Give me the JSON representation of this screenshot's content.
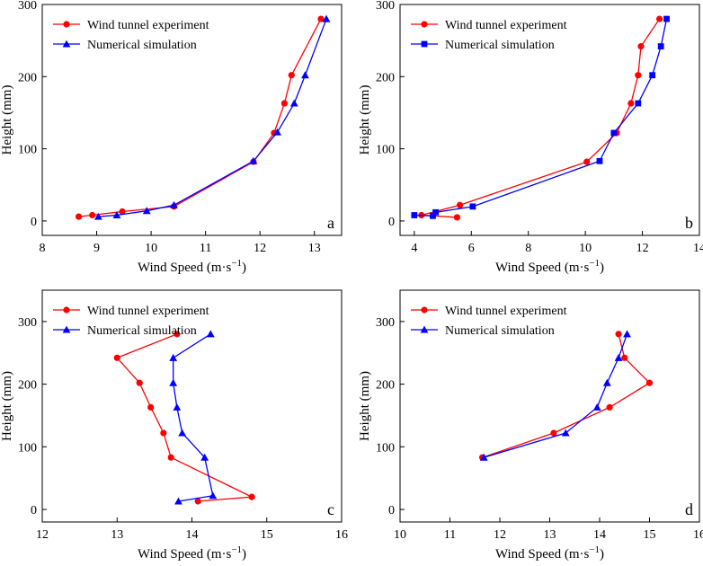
{
  "chart_data": [
    {
      "type": "line",
      "panel": "a",
      "xlabel": "Wind Speed (m·s",
      "xlabel_exp": "−1",
      "xlabel_close": ")",
      "ylabel": "Height (mm)",
      "xlim": [
        8,
        13.5
      ],
      "ylim": [
        -20,
        300
      ],
      "xticks": [
        8,
        9,
        10,
        11,
        12,
        13
      ],
      "yticks": [
        0,
        100,
        200,
        300
      ],
      "legend_position": "top-left",
      "series": [
        {
          "name": "Wind tunnel experiment",
          "color": "#ff0000",
          "marker": "circle",
          "points": [
            [
              8.67,
              6
            ],
            [
              8.92,
              8
            ],
            [
              9.47,
              13
            ],
            [
              10.42,
              20
            ],
            [
              11.88,
              82
            ],
            [
              12.26,
              122
            ],
            [
              12.45,
              163
            ],
            [
              12.58,
              202
            ],
            [
              13.12,
              280
            ]
          ]
        },
        {
          "name": "Numerical simulation",
          "color": "#0000ff",
          "marker": "triangle",
          "points": [
            [
              9.03,
              6
            ],
            [
              9.37,
              8
            ],
            [
              9.92,
              14
            ],
            [
              10.42,
              22
            ],
            [
              11.88,
              83
            ],
            [
              12.32,
              123
            ],
            [
              12.63,
              163
            ],
            [
              12.83,
              202
            ],
            [
              13.22,
              280
            ]
          ]
        }
      ]
    },
    {
      "type": "line",
      "panel": "b",
      "xlabel": "Wind Speed (m·s",
      "xlabel_exp": "−1",
      "xlabel_close": ")",
      "ylabel": "Height (mm)",
      "xlim": [
        3.5,
        14
      ],
      "ylim": [
        -20,
        300
      ],
      "xticks": [
        4,
        6,
        8,
        10,
        12,
        14
      ],
      "yticks": [
        0,
        100,
        200,
        300
      ],
      "legend_position": "top-left",
      "series": [
        {
          "name": "Wind tunnel experiment",
          "color": "#ff0000",
          "marker": "circle",
          "points": [
            [
              5.5,
              5
            ],
            [
              4.25,
              8
            ],
            [
              5.6,
              22
            ],
            [
              10.05,
              82
            ],
            [
              11.1,
              122
            ],
            [
              11.6,
              163
            ],
            [
              11.85,
              202
            ],
            [
              11.95,
              242
            ],
            [
              12.6,
              280
            ]
          ]
        },
        {
          "name": "Numerical simulation",
          "color": "#0000ff",
          "marker": "square",
          "points": [
            [
              4.0,
              8
            ],
            [
              4.65,
              7
            ],
            [
              4.75,
              12
            ],
            [
              6.05,
              20
            ],
            [
              10.5,
              83
            ],
            [
              11.0,
              122
            ],
            [
              11.85,
              163
            ],
            [
              12.35,
              202
            ],
            [
              12.65,
              242
            ],
            [
              12.85,
              280
            ]
          ]
        }
      ]
    },
    {
      "type": "line",
      "panel": "c",
      "xlabel": "Wind Speed (m·s",
      "xlabel_exp": "−1",
      "xlabel_close": ")",
      "ylabel": "Height (mm)",
      "xlim": [
        12,
        16
      ],
      "ylim": [
        -20,
        350
      ],
      "xticks": [
        12,
        13,
        14,
        15,
        16
      ],
      "yticks": [
        0,
        100,
        200,
        300
      ],
      "legend_position": "top-left",
      "series": [
        {
          "name": "Wind tunnel experiment",
          "color": "#ff0000",
          "marker": "circle",
          "points": [
            [
              13.8,
              280
            ],
            [
              13.0,
              242
            ],
            [
              13.3,
              202
            ],
            [
              13.45,
              163
            ],
            [
              13.62,
              122
            ],
            [
              13.72,
              83
            ],
            [
              14.8,
              20
            ],
            [
              14.08,
              13
            ]
          ]
        },
        {
          "name": "Numerical simulation",
          "color": "#0000ff",
          "marker": "triangle",
          "points": [
            [
              14.25,
              280
            ],
            [
              13.75,
              242
            ],
            [
              13.75,
              202
            ],
            [
              13.8,
              163
            ],
            [
              13.87,
              122
            ],
            [
              14.17,
              83
            ],
            [
              14.28,
              22
            ],
            [
              13.82,
              13
            ]
          ]
        }
      ]
    },
    {
      "type": "line",
      "panel": "d",
      "xlabel": "Wind Speed (m·s",
      "xlabel_exp": "−1",
      "xlabel_close": ")",
      "ylabel": "Height (mm)",
      "xlim": [
        10,
        16
      ],
      "ylim": [
        -20,
        350
      ],
      "xticks": [
        10,
        11,
        12,
        13,
        14,
        15,
        16
      ],
      "yticks": [
        0,
        100,
        200,
        300
      ],
      "legend_position": "top-left",
      "series": [
        {
          "name": "Wind tunnel experiment",
          "color": "#ff0000",
          "marker": "circle",
          "points": [
            [
              14.38,
              280
            ],
            [
              14.5,
              242
            ],
            [
              15.0,
              202
            ],
            [
              14.2,
              163
            ],
            [
              13.08,
              122
            ],
            [
              11.65,
              83
            ]
          ]
        },
        {
          "name": "Numerical simulation",
          "color": "#0000ff",
          "marker": "triangle",
          "points": [
            [
              14.55,
              280
            ],
            [
              14.38,
              242
            ],
            [
              14.15,
              202
            ],
            [
              13.95,
              163
            ],
            [
              13.32,
              122
            ],
            [
              11.68,
              83
            ]
          ]
        }
      ]
    }
  ]
}
